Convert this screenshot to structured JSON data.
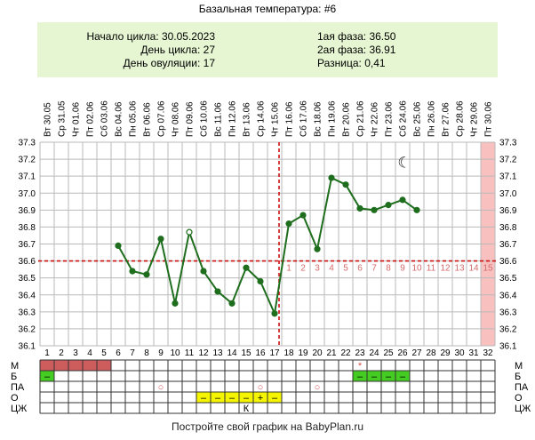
{
  "title": "Базальная температура: #6",
  "info": {
    "left": [
      {
        "label": "Начало цикла:",
        "value": "30.05.2023"
      },
      {
        "label": "День цикла:",
        "value": "27"
      },
      {
        "label": "День овуляции:",
        "value": "17"
      }
    ],
    "right": [
      {
        "label": "1ая фаза:",
        "value": "36.50"
      },
      {
        "label": "2ая фаза:",
        "value": "36.91"
      },
      {
        "label": "Разница:",
        "value": "0,41"
      }
    ]
  },
  "footer": "Постройте свой график на BabyPlan.ru",
  "chart_data": {
    "type": "line",
    "x": [
      1,
      2,
      3,
      4,
      5,
      6,
      7,
      8,
      9,
      10,
      11,
      12,
      13,
      14,
      15,
      16,
      17,
      18,
      19,
      20,
      21,
      22,
      23,
      24,
      25,
      26,
      27,
      28,
      29,
      30,
      31,
      32
    ],
    "dates": [
      "Вт 30.05",
      "Ср 31.05",
      "Чт 01.06",
      "Пт 02.06",
      "Сб 03.06",
      "Вс 04.06",
      "Пн 05.06",
      "Вт 06.06",
      "Ср 07.06",
      "Чт 08.06",
      "Пт 09.06",
      "Сб 10.06",
      "Вс 11.06",
      "Пн 12.06",
      "Вт 13.06",
      "Ср 14.06",
      "Чт 15.06",
      "Пт 16.06",
      "Сб 17.06",
      "Вс 18.06",
      "Пн 19.06",
      "Вт 20.06",
      "Ср 21.06",
      "Чт 22.06",
      "Пт 23.06",
      "Сб 24.06",
      "Вс 25.06",
      "Пн 26.06",
      "Вт 27.06",
      "Ср 28.06",
      "Чт 29.06",
      "Пт 30.06"
    ],
    "series": [
      {
        "values": [
          null,
          null,
          null,
          null,
          null,
          36.69,
          36.54,
          36.52,
          36.73,
          36.35,
          36.77,
          36.54,
          36.42,
          36.35,
          36.56,
          36.48,
          36.29,
          36.82,
          36.87,
          36.67,
          37.09,
          37.05,
          36.91,
          36.9,
          36.93,
          36.96,
          36.9,
          null,
          null,
          null,
          null,
          null
        ],
        "hollow_days": [
          11
        ],
        "color": "#1e6e1e"
      }
    ],
    "ylim": [
      36.1,
      37.3
    ],
    "yticks": [
      "37.3",
      "37.2",
      "37.1",
      "37.0",
      "36.9",
      "36.8",
      "36.7",
      "36.6",
      "36.5",
      "36.4",
      "36.3",
      "36.2",
      "36.1"
    ],
    "coverline": 36.6,
    "ovulation_day": 17,
    "post_ovulation_numbers": [
      "1",
      "2",
      "3",
      "4",
      "5",
      "6",
      "7",
      "8",
      "9",
      "10",
      "11",
      "12",
      "13",
      "14",
      "15"
    ],
    "post_ovulation_start_day": 18,
    "highlight_day": 32,
    "highlight_color": "#f9c0c0",
    "moon_day": 26,
    "moon_glyph": "☾",
    "grid": true,
    "rows": [
      {
        "label": "М",
        "marks": [
          {
            "day": 1,
            "fill": "#cd5c5c",
            "text": ""
          },
          {
            "day": 2,
            "fill": "#cd5c5c",
            "text": ""
          },
          {
            "day": 3,
            "fill": "#cd5c5c",
            "text": ""
          },
          {
            "day": 4,
            "fill": "#cd5c5c",
            "text": ""
          },
          {
            "day": 5,
            "fill": "#cd5c5c",
            "text": ""
          },
          {
            "day": 23,
            "fill": "",
            "text": "*",
            "color": "#d9534f"
          }
        ]
      },
      {
        "label": "Б",
        "marks": [
          {
            "day": 1,
            "fill": "#44cc22",
            "text": "–"
          },
          {
            "day": 23,
            "fill": "#44cc22",
            "text": "–"
          },
          {
            "day": 24,
            "fill": "#44cc22",
            "text": "–"
          },
          {
            "day": 25,
            "fill": "#44cc22",
            "text": "–"
          },
          {
            "day": 26,
            "fill": "#44cc22",
            "text": "–"
          }
        ]
      },
      {
        "label": "ПА",
        "marks": [
          {
            "day": 9,
            "fill": "",
            "text": "○",
            "color": "#d9534f"
          },
          {
            "day": 16,
            "fill": "",
            "text": "○",
            "color": "#d9534f"
          },
          {
            "day": 20,
            "fill": "",
            "text": "○",
            "color": "#d9534f"
          }
        ]
      },
      {
        "label": "О",
        "marks": [
          {
            "day": 12,
            "fill": "#f5f500",
            "text": "–"
          },
          {
            "day": 13,
            "fill": "#f5f500",
            "text": "–"
          },
          {
            "day": 14,
            "fill": "#f5f500",
            "text": "–"
          },
          {
            "day": 15,
            "fill": "#f5f500",
            "text": "–"
          },
          {
            "day": 16,
            "fill": "#f5f500",
            "text": "+"
          },
          {
            "day": 17,
            "fill": "#f5f500",
            "text": "–"
          }
        ]
      },
      {
        "label": "ЦЖ",
        "marks": [
          {
            "day": 15,
            "fill": "",
            "text": "К"
          }
        ]
      }
    ]
  }
}
